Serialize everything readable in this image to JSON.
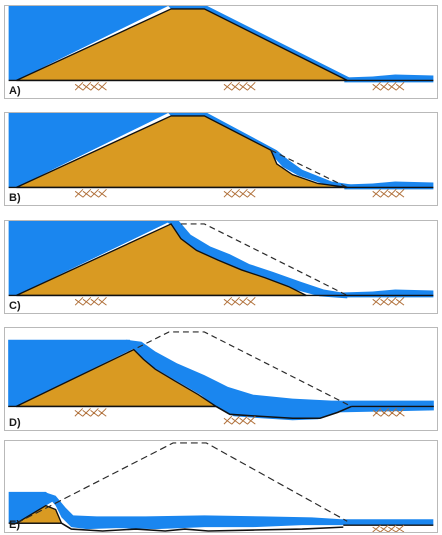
{
  "colors": {
    "water": "#1a86ef",
    "soil": "#d99a22",
    "outline": "#111111",
    "original_profile": "#2a2a2a",
    "ground_hatch": "#b0703a"
  },
  "panels": [
    {
      "label": "A)"
    },
    {
      "label": "B)"
    },
    {
      "label": "C)"
    },
    {
      "label": "D)"
    },
    {
      "label": "E)"
    }
  ]
}
